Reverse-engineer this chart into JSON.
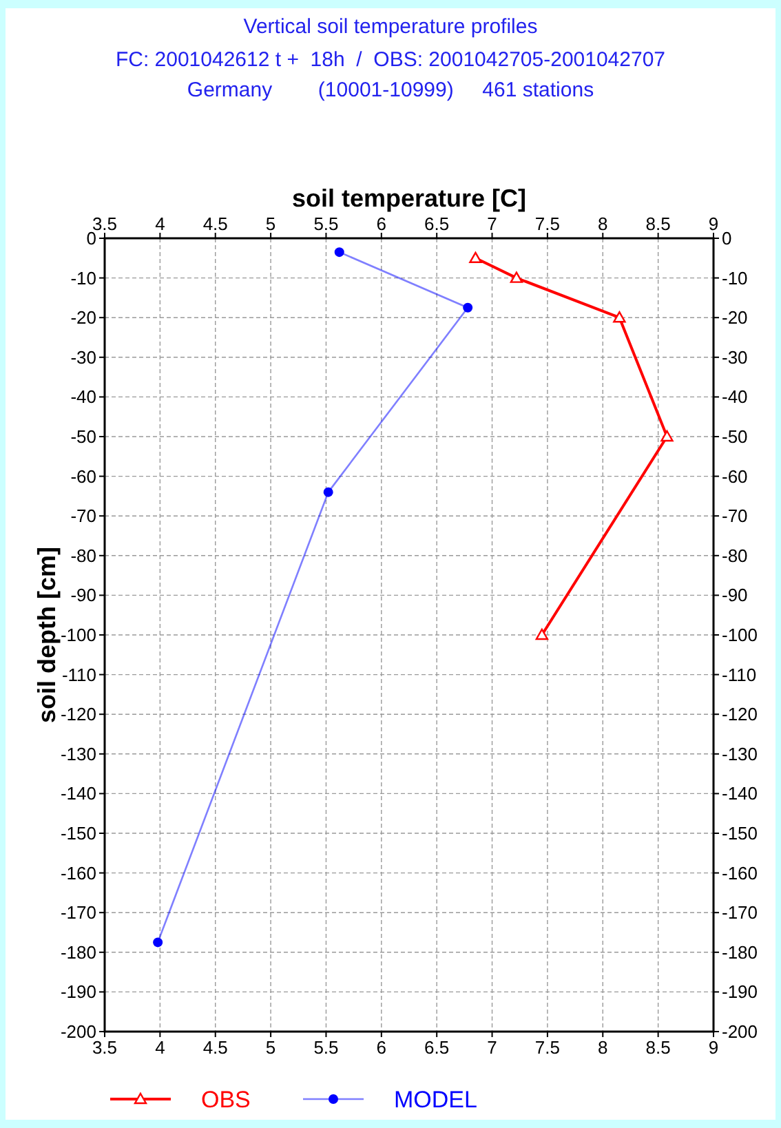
{
  "chart_data": {
    "type": "line",
    "title": "Vertical soil temperature profiles",
    "subtitle": "FC: 2001042612 t +  18h  /  OBS: 2001042705-2001042707\nGermany        (10001-10999)     461 stations",
    "xlabel": "soil temperature [C]",
    "ylabel": "soil depth [cm]",
    "series": [
      {
        "name": "OBS",
        "color": "#ff0000",
        "marker": "triangle",
        "x": [
          6.85,
          7.22,
          8.15,
          8.58,
          7.45
        ],
        "values": [
          -5,
          -10,
          -20,
          -50,
          -100
        ]
      },
      {
        "name": "MODEL",
        "color": "#0000ff",
        "marker": "circle",
        "x": [
          5.62,
          6.78,
          5.52,
          3.98
        ],
        "values": [
          -3.5,
          -17.5,
          -64,
          -177.5
        ]
      }
    ],
    "xlim": [
      3.5,
      9
    ],
    "xticks": [
      3.5,
      4,
      4.5,
      5,
      5.5,
      6,
      6.5,
      7,
      7.5,
      8,
      8.5,
      9
    ],
    "x2lim": [
      3.5,
      9
    ],
    "x2ticks": [
      3.5,
      4,
      4.5,
      5,
      5.5,
      6,
      6.5,
      7,
      7.5,
      8,
      8.5,
      9
    ],
    "ylim": [
      -200,
      0
    ],
    "yticks": [
      0,
      -10,
      -20,
      -30,
      -40,
      -50,
      -60,
      -70,
      -80,
      -90,
      -100,
      -110,
      -120,
      -130,
      -140,
      -150,
      -160,
      -170,
      -180,
      -190,
      -200
    ],
    "y2lim": [
      -200,
      0
    ],
    "y2ticks": [
      0,
      -10,
      -20,
      -30,
      -40,
      -50,
      -60,
      -70,
      -80,
      -90,
      -100,
      -110,
      -120,
      -130,
      -140,
      -150,
      -160,
      -170,
      -180,
      -190,
      -200
    ],
    "grid": true,
    "legend": "bottom"
  }
}
